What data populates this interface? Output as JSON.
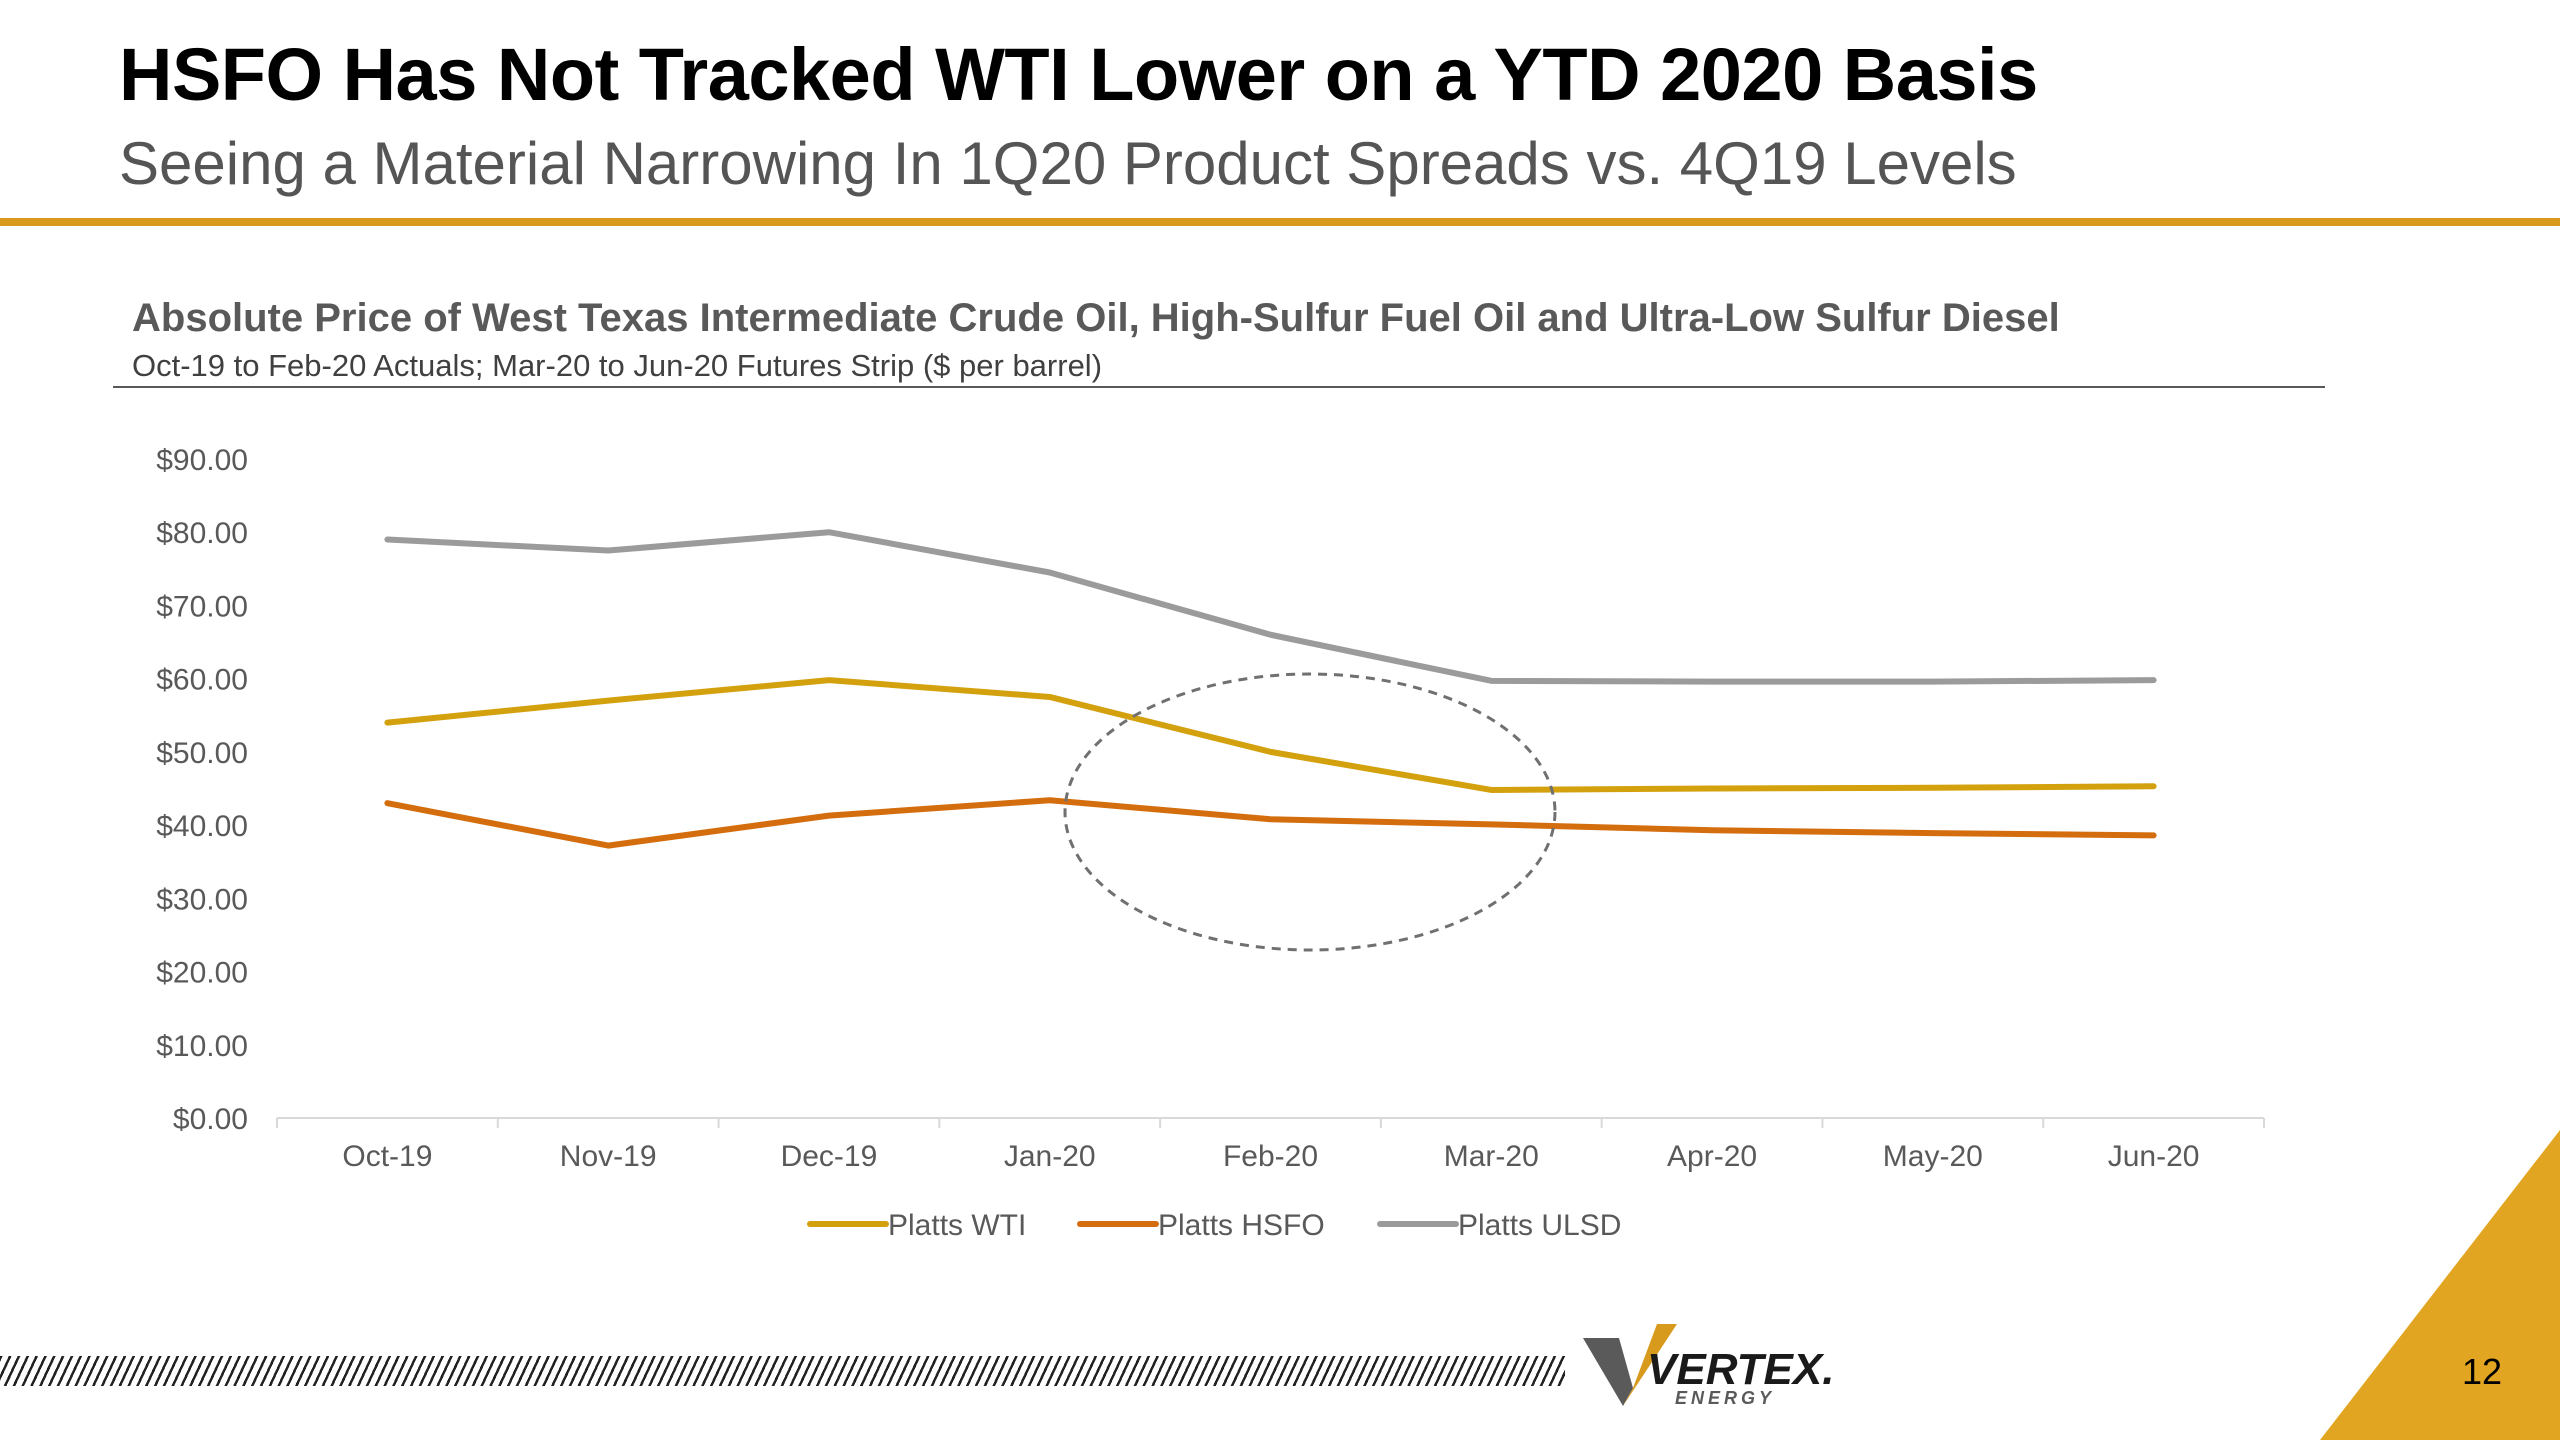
{
  "header": {
    "title": "HSFO Has Not Tracked WTI Lower on a YTD 2020 Basis",
    "subtitle": "Seeing a Material Narrowing In 1Q20 Product Spreads vs. 4Q19 Levels"
  },
  "chart_data": {
    "type": "line",
    "title": "Absolute Price of West Texas Intermediate Crude Oil, High-Sulfur Fuel Oil and Ultra-Low Sulfur Diesel",
    "subtitle": "Oct-19 to Feb-20 Actuals; Mar-20 to Jun-20 Futures Strip ($ per barrel)",
    "categories": [
      "Oct-19",
      "Nov-19",
      "Dec-19",
      "Jan-20",
      "Feb-20",
      "Mar-20",
      "Apr-20",
      "May-20",
      "Jun-20"
    ],
    "series": [
      {
        "name": "Platts WTI",
        "color": "#d4a10e",
        "values": [
          54.0,
          57.0,
          59.8,
          57.5,
          50.0,
          44.8,
          45.0,
          45.1,
          45.3
        ]
      },
      {
        "name": "Platts HSFO",
        "color": "#d46d0e",
        "values": [
          43.0,
          37.2,
          41.3,
          43.4,
          40.8,
          40.1,
          39.3,
          38.9,
          38.6
        ]
      },
      {
        "name": "Platts ULSD",
        "color": "#9b9b9b",
        "values": [
          79.0,
          77.5,
          80.0,
          74.5,
          66.0,
          59.7,
          59.6,
          59.6,
          59.8
        ]
      }
    ],
    "y_ticks": [
      "$90.00",
      "$80.00",
      "$70.00",
      "$60.00",
      "$50.00",
      "$40.00",
      "$30.00",
      "$20.00",
      "$10.00",
      "$0.00"
    ],
    "ylim": [
      0,
      90
    ],
    "xlabel": "",
    "ylabel": "",
    "grid": false,
    "legend_position": "bottom-center",
    "annotation": "dashed-ellipse around Feb-20 to Mar-20"
  },
  "branding": {
    "logo_text": "VERTEX.",
    "logo_subtext": "ENERGY",
    "accent_color": "#d89a1c",
    "logo_dark_color": "#5a5a5a"
  },
  "footer": {
    "page_number": "12"
  }
}
